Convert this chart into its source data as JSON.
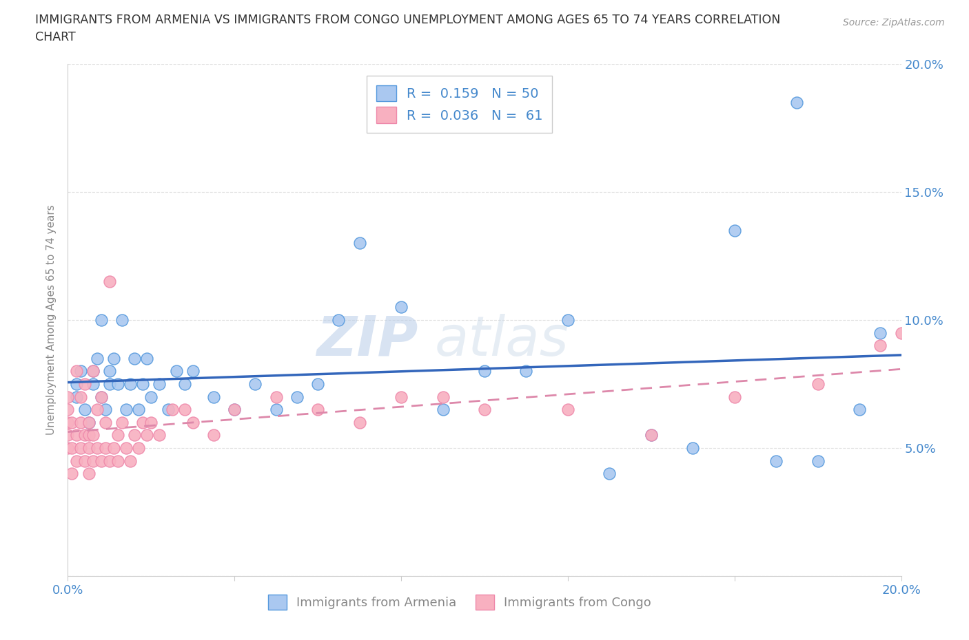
{
  "title_line1": "IMMIGRANTS FROM ARMENIA VS IMMIGRANTS FROM CONGO UNEMPLOYMENT AMONG AGES 65 TO 74 YEARS CORRELATION",
  "title_line2": "CHART",
  "source": "Source: ZipAtlas.com",
  "ylabel": "Unemployment Among Ages 65 to 74 years",
  "xlim": [
    0.0,
    0.2
  ],
  "ylim": [
    0.0,
    0.2
  ],
  "xticks": [
    0.0,
    0.04,
    0.08,
    0.12,
    0.16,
    0.2
  ],
  "yticks": [
    0.0,
    0.05,
    0.1,
    0.15,
    0.2
  ],
  "xtick_labels": [
    "0.0%",
    "",
    "",
    "",
    "",
    "20.0%"
  ],
  "ytick_labels_left": [
    "",
    "",
    "",
    "",
    ""
  ],
  "ytick_labels_right": [
    "",
    "5.0%",
    "10.0%",
    "15.0%",
    "20.0%"
  ],
  "armenia_color": "#aac8f0",
  "armenia_edge_color": "#5599dd",
  "congo_color": "#f8b0c0",
  "congo_edge_color": "#ee88aa",
  "armenia_line_color": "#3366bb",
  "congo_line_color": "#dd88aa",
  "background_color": "#ffffff",
  "grid_color": "#e0e0e0",
  "R_armenia": "0.159",
  "N_armenia": "50",
  "R_congo": "0.036",
  "N_congo": "61",
  "legend_label_armenia": "Immigrants from Armenia",
  "legend_label_congo": "Immigrants from Congo",
  "watermark_zip": "ZIP",
  "watermark_atlas": "atlas",
  "armenia_x": [
    0.002,
    0.002,
    0.003,
    0.004,
    0.005,
    0.006,
    0.006,
    0.007,
    0.008,
    0.008,
    0.009,
    0.01,
    0.01,
    0.011,
    0.012,
    0.013,
    0.014,
    0.015,
    0.016,
    0.017,
    0.018,
    0.019,
    0.02,
    0.022,
    0.024,
    0.026,
    0.028,
    0.03,
    0.035,
    0.04,
    0.045,
    0.05,
    0.055,
    0.06,
    0.065,
    0.07,
    0.08,
    0.09,
    0.1,
    0.11,
    0.12,
    0.13,
    0.14,
    0.15,
    0.16,
    0.17,
    0.175,
    0.18,
    0.19,
    0.195
  ],
  "armenia_y": [
    0.07,
    0.075,
    0.08,
    0.065,
    0.06,
    0.075,
    0.08,
    0.085,
    0.07,
    0.1,
    0.065,
    0.075,
    0.08,
    0.085,
    0.075,
    0.1,
    0.065,
    0.075,
    0.085,
    0.065,
    0.075,
    0.085,
    0.07,
    0.075,
    0.065,
    0.08,
    0.075,
    0.08,
    0.07,
    0.065,
    0.075,
    0.065,
    0.07,
    0.075,
    0.1,
    0.13,
    0.105,
    0.065,
    0.08,
    0.08,
    0.1,
    0.04,
    0.055,
    0.05,
    0.135,
    0.045,
    0.185,
    0.045,
    0.065,
    0.095
  ],
  "congo_x": [
    0.0,
    0.0,
    0.0,
    0.0,
    0.0,
    0.001,
    0.001,
    0.001,
    0.002,
    0.002,
    0.002,
    0.003,
    0.003,
    0.003,
    0.004,
    0.004,
    0.004,
    0.005,
    0.005,
    0.005,
    0.005,
    0.006,
    0.006,
    0.006,
    0.007,
    0.007,
    0.008,
    0.008,
    0.009,
    0.009,
    0.01,
    0.01,
    0.011,
    0.012,
    0.012,
    0.013,
    0.014,
    0.015,
    0.016,
    0.017,
    0.018,
    0.019,
    0.02,
    0.022,
    0.025,
    0.028,
    0.03,
    0.035,
    0.04,
    0.05,
    0.06,
    0.07,
    0.08,
    0.09,
    0.1,
    0.12,
    0.14,
    0.16,
    0.18,
    0.195,
    0.2
  ],
  "congo_y": [
    0.05,
    0.055,
    0.06,
    0.065,
    0.07,
    0.04,
    0.05,
    0.06,
    0.045,
    0.055,
    0.08,
    0.05,
    0.06,
    0.07,
    0.045,
    0.055,
    0.075,
    0.04,
    0.05,
    0.055,
    0.06,
    0.045,
    0.055,
    0.08,
    0.05,
    0.065,
    0.045,
    0.07,
    0.05,
    0.06,
    0.045,
    0.115,
    0.05,
    0.045,
    0.055,
    0.06,
    0.05,
    0.045,
    0.055,
    0.05,
    0.06,
    0.055,
    0.06,
    0.055,
    0.065,
    0.065,
    0.06,
    0.055,
    0.065,
    0.07,
    0.065,
    0.06,
    0.07,
    0.07,
    0.065,
    0.065,
    0.055,
    0.07,
    0.075,
    0.09,
    0.095
  ]
}
